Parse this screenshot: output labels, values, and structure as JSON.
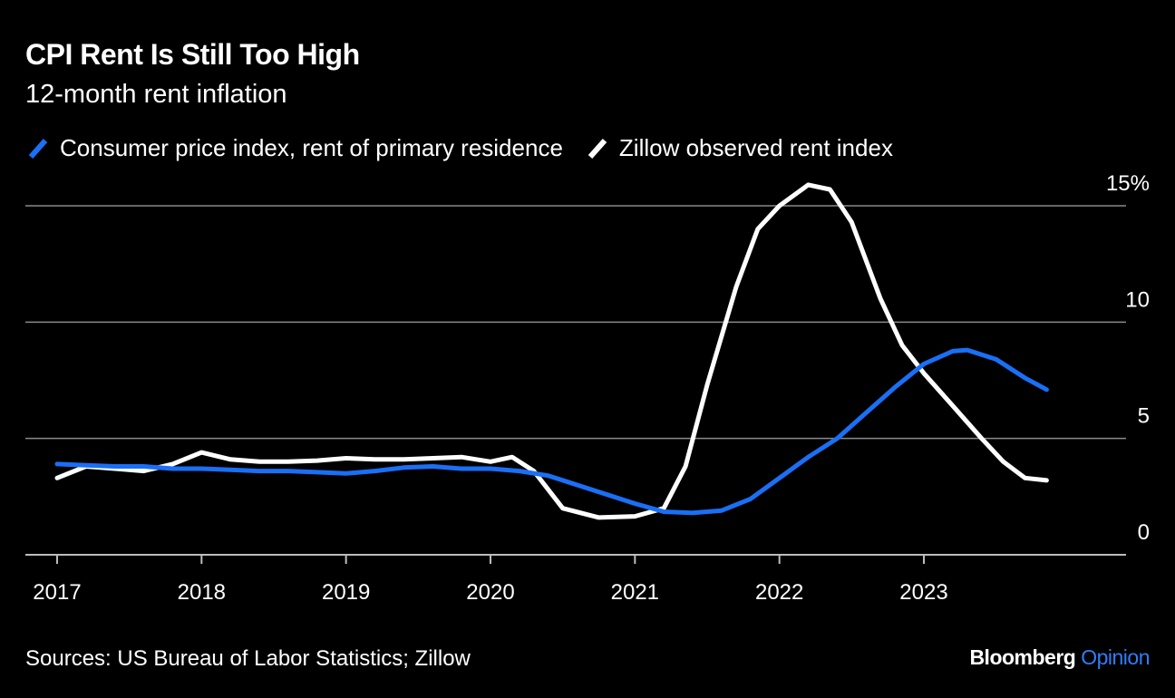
{
  "header": {
    "title": "CPI Rent Is Still Too High",
    "subtitle": "12-month rent inflation"
  },
  "footer": {
    "source": "Sources: US Bureau of Labor Statistics; Zillow",
    "brand_main": "Bloomberg",
    "brand_accent": "Opinion"
  },
  "colors": {
    "background": "#000000",
    "cpi": "#1a6ff5",
    "zillow": "#ffffff",
    "grid": "#8a8a8a",
    "brand_accent": "#2f7df6"
  },
  "chart_data": {
    "type": "line",
    "xlim": [
      2017.0,
      2024.3
    ],
    "ylim": [
      0,
      15
    ],
    "y_ticks": [
      {
        "value": 15,
        "label": "15%"
      },
      {
        "value": 10,
        "label": "10"
      },
      {
        "value": 5,
        "label": "5"
      },
      {
        "value": 0,
        "label": "0"
      }
    ],
    "x_ticks": [
      {
        "value": 2017,
        "label": "2017"
      },
      {
        "value": 2018,
        "label": "2018"
      },
      {
        "value": 2019,
        "label": "2019"
      },
      {
        "value": 2020,
        "label": "2020"
      },
      {
        "value": 2021,
        "label": "2021"
      },
      {
        "value": 2022,
        "label": "2022"
      },
      {
        "value": 2023,
        "label": "2023"
      }
    ],
    "grid": true,
    "legend_position": "top-left",
    "series": [
      {
        "name": "Consumer price index, rent of primary residence",
        "color": "#1a6ff5",
        "points": [
          [
            2017.0,
            3.9
          ],
          [
            2017.2,
            3.85
          ],
          [
            2017.4,
            3.8
          ],
          [
            2017.6,
            3.8
          ],
          [
            2017.8,
            3.7
          ],
          [
            2018.0,
            3.7
          ],
          [
            2018.2,
            3.65
          ],
          [
            2018.4,
            3.6
          ],
          [
            2018.6,
            3.6
          ],
          [
            2018.8,
            3.55
          ],
          [
            2019.0,
            3.5
          ],
          [
            2019.2,
            3.6
          ],
          [
            2019.4,
            3.75
          ],
          [
            2019.6,
            3.8
          ],
          [
            2019.8,
            3.7
          ],
          [
            2020.0,
            3.7
          ],
          [
            2020.2,
            3.6
          ],
          [
            2020.4,
            3.4
          ],
          [
            2020.6,
            3.0
          ],
          [
            2020.8,
            2.6
          ],
          [
            2021.0,
            2.2
          ],
          [
            2021.2,
            1.85
          ],
          [
            2021.4,
            1.8
          ],
          [
            2021.6,
            1.9
          ],
          [
            2021.8,
            2.4
          ],
          [
            2022.0,
            3.3
          ],
          [
            2022.2,
            4.2
          ],
          [
            2022.4,
            5.0
          ],
          [
            2022.6,
            6.1
          ],
          [
            2022.8,
            7.2
          ],
          [
            2023.0,
            8.2
          ],
          [
            2023.2,
            8.75
          ],
          [
            2023.3,
            8.8
          ],
          [
            2023.5,
            8.4
          ],
          [
            2023.7,
            7.6
          ],
          [
            2023.85,
            7.1
          ]
        ]
      },
      {
        "name": "Zillow observed rent index",
        "color": "#ffffff",
        "points": [
          [
            2017.0,
            3.3
          ],
          [
            2017.2,
            3.8
          ],
          [
            2017.4,
            3.7
          ],
          [
            2017.6,
            3.6
          ],
          [
            2017.8,
            3.9
          ],
          [
            2018.0,
            4.4
          ],
          [
            2018.2,
            4.1
          ],
          [
            2018.4,
            4.0
          ],
          [
            2018.6,
            4.0
          ],
          [
            2018.8,
            4.05
          ],
          [
            2019.0,
            4.15
          ],
          [
            2019.2,
            4.1
          ],
          [
            2019.4,
            4.1
          ],
          [
            2019.6,
            4.15
          ],
          [
            2019.8,
            4.2
          ],
          [
            2020.0,
            4.0
          ],
          [
            2020.15,
            4.2
          ],
          [
            2020.3,
            3.6
          ],
          [
            2020.5,
            2.0
          ],
          [
            2020.75,
            1.6
          ],
          [
            2021.0,
            1.65
          ],
          [
            2021.2,
            2.0
          ],
          [
            2021.35,
            3.8
          ],
          [
            2021.5,
            7.3
          ],
          [
            2021.7,
            11.5
          ],
          [
            2021.85,
            14.0
          ],
          [
            2022.0,
            15.0
          ],
          [
            2022.2,
            15.9
          ],
          [
            2022.35,
            15.7
          ],
          [
            2022.5,
            14.3
          ],
          [
            2022.7,
            11.0
          ],
          [
            2022.85,
            9.0
          ],
          [
            2023.0,
            7.8
          ],
          [
            2023.2,
            6.4
          ],
          [
            2023.4,
            5.0
          ],
          [
            2023.55,
            4.0
          ],
          [
            2023.7,
            3.3
          ],
          [
            2023.85,
            3.2
          ]
        ]
      }
    ]
  }
}
